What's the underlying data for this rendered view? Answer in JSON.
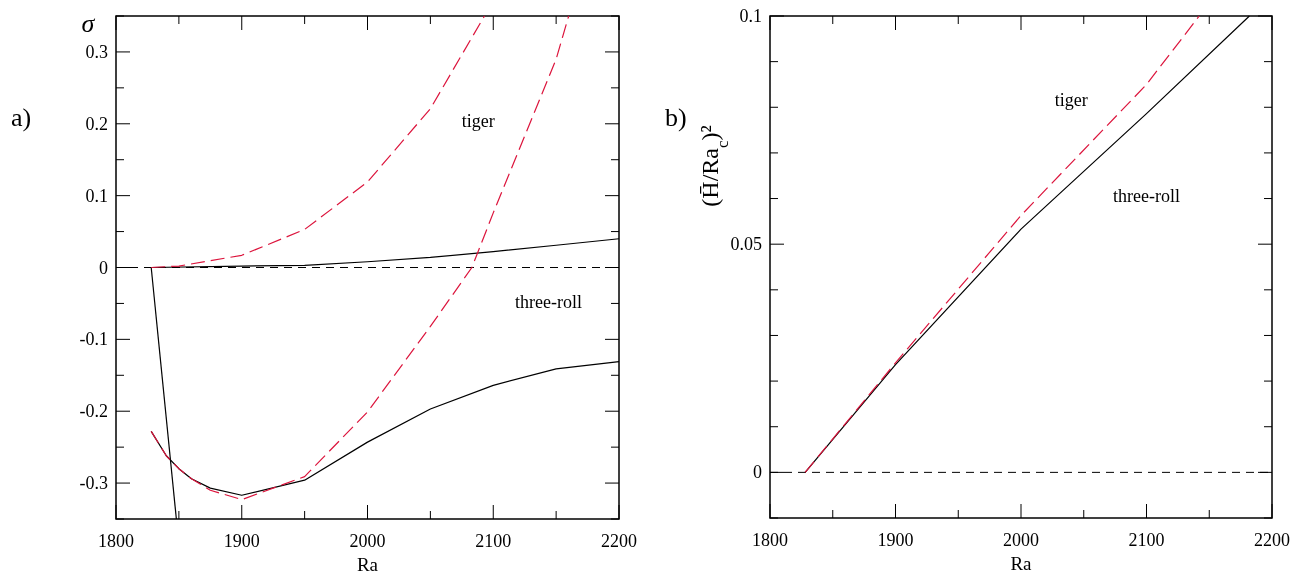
{
  "chart_data": [
    {
      "type": "line",
      "xlabel": "Ra",
      "ylabel": "σ",
      "annotations": [
        "a)",
        "tiger",
        "three-roll"
      ],
      "xlim": [
        1800,
        2200
      ],
      "ylim": [
        -0.35,
        0.35
      ],
      "xticks": [
        1800,
        {
          "value": 1850,
          "label": null
        },
        1900,
        {
          "value": 1950,
          "label": null
        },
        2000,
        {
          "value": 2050,
          "label": null
        },
        2100,
        {
          "value": 2150,
          "label": null
        },
        2200
      ],
      "yticks": [
        {
          "value": -0.35,
          "label": null
        },
        -0.3,
        {
          "value": -0.25,
          "label": null
        },
        -0.2,
        {
          "value": -0.15,
          "label": null
        },
        -0.1,
        {
          "value": -0.05,
          "label": null
        },
        0,
        {
          "value": 0.05,
          "label": null
        },
        0.1,
        {
          "value": 0.15,
          "label": null
        },
        0.2,
        {
          "value": 0.25,
          "label": null
        },
        0.3,
        {
          "value": 0.35,
          "label": null
        }
      ],
      "ref_lines": [
        {
          "axis": "y",
          "value": 0,
          "color": "#000000",
          "line_style": "dashed"
        }
      ],
      "series": [
        {
          "color": "#000000",
          "line_style": "solid",
          "x": [
            1828,
            1900,
            1950,
            2000,
            2050,
            2100,
            2150,
            2200
          ],
          "values": [
            0,
            0.002,
            0.003,
            0.008,
            0.014,
            0.022,
            0.031,
            0.04
          ]
        },
        {
          "color": "#000000",
          "line_style": "solid",
          "x": [
            1828,
            1848
          ],
          "values": [
            0,
            -0.35
          ]
        },
        {
          "color": "#000000",
          "line_style": "solid",
          "x": [
            1828,
            1840,
            1850,
            1860,
            1875,
            1900,
            1950,
            2000,
            2050,
            2100,
            2150,
            2200
          ],
          "values": [
            -0.228,
            -0.262,
            -0.28,
            -0.294,
            -0.307,
            -0.317,
            -0.296,
            -0.243,
            -0.197,
            -0.164,
            -0.141,
            -0.131
          ]
        },
        {
          "color": "#dc143c",
          "line_style": "dashed",
          "x": [
            1828,
            1840,
            1850,
            1860,
            1875,
            1900,
            1950,
            2000,
            2050,
            2083,
            2100,
            2150,
            2160
          ],
          "values": [
            -0.228,
            -0.262,
            -0.28,
            -0.294,
            -0.31,
            -0.323,
            -0.291,
            -0.201,
            -0.082,
            0,
            0.076,
            0.29,
            0.35
          ]
        },
        {
          "color": "#dc143c",
          "line_style": "dashed",
          "x": [
            1828,
            1850,
            1900,
            1950,
            2000,
            2050,
            2093
          ],
          "values": [
            0,
            0.002,
            0.017,
            0.053,
            0.119,
            0.221,
            0.35
          ]
        }
      ]
    },
    {
      "type": "line",
      "xlabel": "Ra",
      "ylabel": "(H̄/Ra$_{c}$)²",
      "annotations": [
        "b)",
        "tiger",
        "three-roll"
      ],
      "xlim": [
        1800,
        2200
      ],
      "ylim": [
        -0.01,
        0.1
      ],
      "xticks": [
        1800,
        {
          "value": 1850,
          "label": null
        },
        1900,
        {
          "value": 1950,
          "label": null
        },
        2000,
        {
          "value": 2050,
          "label": null
        },
        2100,
        {
          "value": 2150,
          "label": null
        },
        2200
      ],
      "yticks": [
        {
          "value": -0.01,
          "label": null
        },
        0,
        {
          "value": 0.01,
          "label": null
        },
        {
          "value": 0.02,
          "label": null
        },
        {
          "value": 0.03,
          "label": null
        },
        {
          "value": 0.04,
          "label": null
        },
        0.05,
        {
          "value": 0.06,
          "label": null
        },
        {
          "value": 0.07,
          "label": null
        },
        {
          "value": 0.08,
          "label": null
        },
        {
          "value": 0.09,
          "label": null
        },
        0.1
      ],
      "ref_lines": [
        {
          "axis": "y",
          "value": 0,
          "color": "#000000",
          "line_style": "dashed"
        }
      ],
      "series": [
        {
          "color": "#000000",
          "line_style": "solid",
          "x": [
            1828,
            1900,
            2000,
            2100,
            2182
          ],
          "values": [
            0,
            0.0236,
            0.0533,
            0.0786,
            0.1
          ]
        },
        {
          "color": "#dc143c",
          "line_style": "dashed",
          "x": [
            1828,
            1900,
            2000,
            2100,
            2142
          ],
          "values": [
            0,
            0.024,
            0.0563,
            0.085,
            0.1
          ]
        }
      ]
    }
  ]
}
